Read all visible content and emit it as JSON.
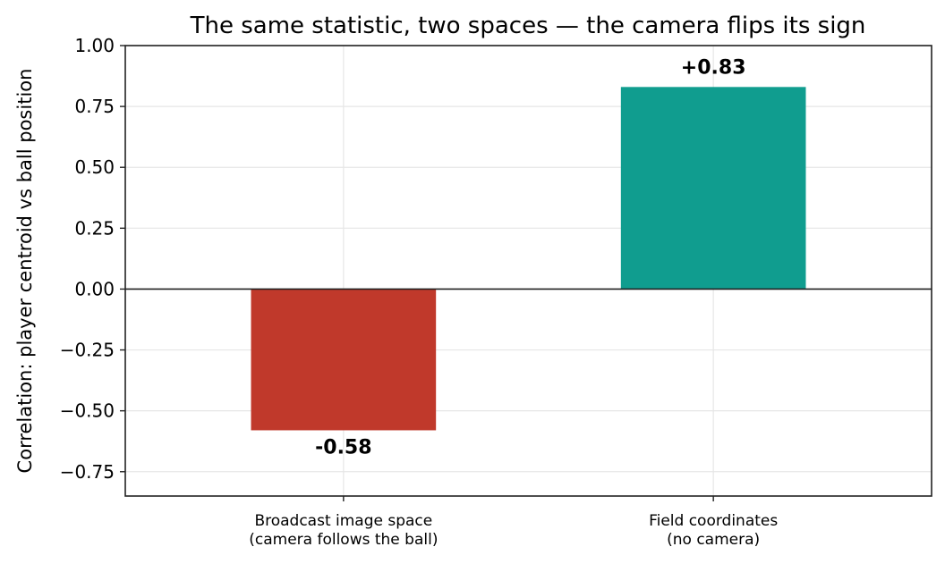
{
  "chart_data": {
    "type": "bar",
    "title": "The same statistic, two spaces — the camera flips its sign",
    "ylabel": "Correlation: player centroid vs ball position",
    "xlabel": "",
    "categories": [
      [
        "Broadcast image space",
        "(camera follows the ball)"
      ],
      [
        "Field coordinates",
        "(no camera)"
      ]
    ],
    "values": [
      -0.58,
      0.83
    ],
    "value_labels": [
      "-0.58",
      "+0.83"
    ],
    "colors": [
      "#c0392b",
      "#109d8f"
    ],
    "ylim": [
      -0.85,
      1.0
    ],
    "yticks": [
      1.0,
      0.75,
      0.5,
      0.25,
      0.0,
      -0.25,
      -0.5,
      -0.75
    ],
    "ytick_labels": [
      "1.00",
      "0.75",
      "0.50",
      "0.25",
      "0.00",
      "−0.25",
      "−0.50",
      "−0.75"
    ],
    "grid": true,
    "zero_line": true,
    "legend": "none"
  }
}
